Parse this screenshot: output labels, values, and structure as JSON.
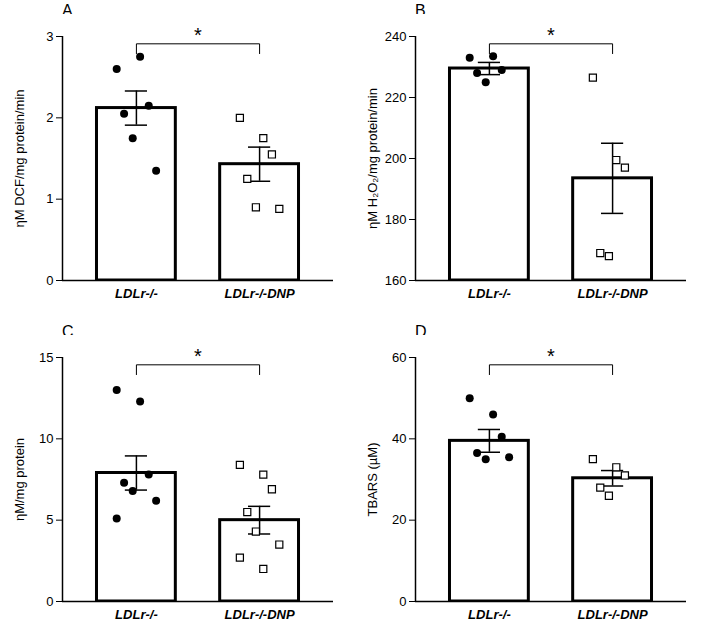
{
  "chart_data": [
    {
      "type": "bar",
      "title": "A",
      "y_label": "ηM DCF/mg protein/min",
      "categories": [
        "LDLr-/-",
        "LDLr-/-DNP"
      ],
      "values": [
        2.12,
        1.43
      ],
      "errors": [
        0.21,
        0.21
      ],
      "points": [
        [
          2.6,
          2.75,
          2.15,
          2.05,
          1.75,
          1.35
        ],
        [
          2.0,
          1.75,
          1.55,
          1.25,
          0.9,
          0.88
        ]
      ],
      "ylim": [
        0,
        3
      ],
      "yticks": [
        0,
        1,
        2,
        3
      ],
      "annotations": [
        "*"
      ]
    },
    {
      "type": "bar",
      "title": "B",
      "y_label": "ηM H₂O₂/mg protein/min",
      "categories": [
        "LDLr-/-",
        "LDLr-/-DNP"
      ],
      "values": [
        229.5,
        193.5
      ],
      "errors": [
        2.0,
        11.5
      ],
      "points": [
        [
          233,
          233.5,
          229,
          228,
          225
        ],
        [
          226.5,
          199.5,
          197,
          169,
          168
        ]
      ],
      "ylim": [
        160,
        240
      ],
      "yticks": [
        160,
        180,
        200,
        220,
        240
      ],
      "annotations": [
        "*"
      ]
    },
    {
      "type": "bar",
      "title": "C",
      "y_label": "ηM/mg protein",
      "categories": [
        "LDLr-/-",
        "LDLr-/-DNP"
      ],
      "values": [
        7.9,
        5.0
      ],
      "errors": [
        1.05,
        0.85
      ],
      "points": [
        [
          13.0,
          12.3,
          7.8,
          7.3,
          6.8,
          6.2,
          5.1
        ],
        [
          8.4,
          7.8,
          6.9,
          5.5,
          4.3,
          3.5,
          2.7,
          2.0
        ]
      ],
      "ylim": [
        0,
        15
      ],
      "yticks": [
        0,
        5,
        10,
        15
      ],
      "annotations": [
        "*"
      ]
    },
    {
      "type": "bar",
      "title": "D",
      "y_label": "TBARS (µM)",
      "categories": [
        "LDLr-/-",
        "LDLr-/-DNP"
      ],
      "values": [
        39.5,
        30.3
      ],
      "errors": [
        2.8,
        1.9
      ],
      "points": [
        [
          50,
          46,
          40.5,
          36.5,
          35,
          35.5
        ],
        [
          35,
          33,
          31,
          28,
          26
        ]
      ],
      "ylim": [
        0,
        60
      ],
      "yticks": [
        0,
        20,
        40,
        60
      ],
      "annotations": [
        "*"
      ]
    }
  ]
}
